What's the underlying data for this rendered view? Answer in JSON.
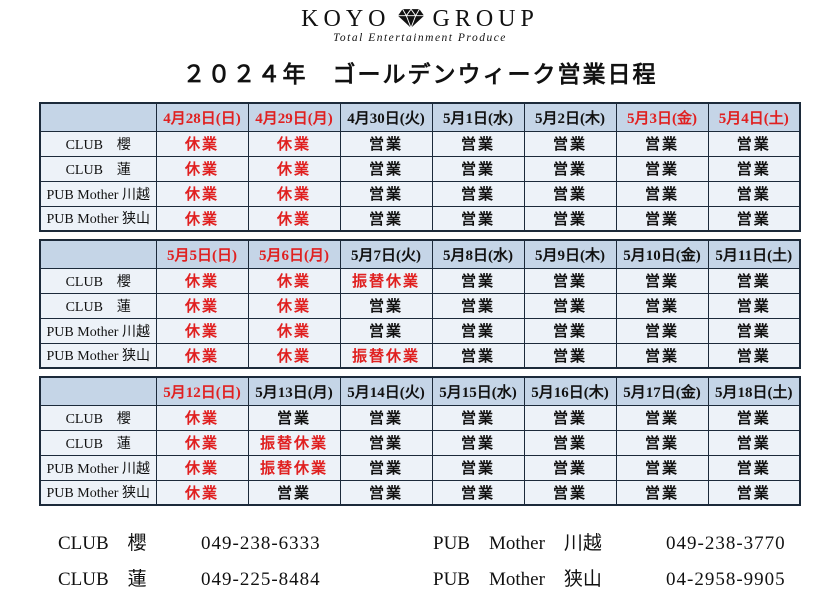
{
  "logo": {
    "brand_left": "KOYO",
    "brand_right": "GROUP",
    "tagline": "Total Entertainment Produce",
    "diamond_icon": "diamond-gem"
  },
  "title": "２０２４年　ゴールデンウィーク営業日程",
  "status_legend": {
    "open": "営業",
    "closed": "休業",
    "substitute_closed": "振替休業",
    "red_statuses": [
      "休業",
      "振替休業"
    ]
  },
  "colors": {
    "header_bg": "#c5d5e7",
    "cell_bg": "#edf2f8",
    "border": "#1c2a3a",
    "red_text": "#e02020",
    "black_text": "#111111"
  },
  "tables": [
    {
      "dates": [
        {
          "text": "4月28日(日)",
          "red": true
        },
        {
          "text": "4月29日(月)",
          "red": true
        },
        {
          "text": "4月30日(火)",
          "red": false
        },
        {
          "text": "5月1日(水)",
          "red": false
        },
        {
          "text": "5月2日(木)",
          "red": false
        },
        {
          "text": "5月3日(金)",
          "red": true
        },
        {
          "text": "5月4日(土)",
          "red": true
        }
      ],
      "rows": [
        {
          "label": "CLUB　櫻",
          "cells": [
            "休業",
            "休業",
            "営業",
            "営業",
            "営業",
            "営業",
            "営業"
          ]
        },
        {
          "label": "CLUB　蓮",
          "cells": [
            "休業",
            "休業",
            "営業",
            "営業",
            "営業",
            "営業",
            "営業"
          ]
        },
        {
          "label": "PUB Mother 川越",
          "cells": [
            "休業",
            "休業",
            "営業",
            "営業",
            "営業",
            "営業",
            "営業"
          ]
        },
        {
          "label": "PUB Mother 狭山",
          "cells": [
            "休業",
            "休業",
            "営業",
            "営業",
            "営業",
            "営業",
            "営業"
          ]
        }
      ]
    },
    {
      "dates": [
        {
          "text": "5月5日(日)",
          "red": true
        },
        {
          "text": "5月6日(月)",
          "red": true
        },
        {
          "text": "5月7日(火)",
          "red": false
        },
        {
          "text": "5月8日(水)",
          "red": false
        },
        {
          "text": "5月9日(木)",
          "red": false
        },
        {
          "text": "5月10日(金)",
          "red": false
        },
        {
          "text": "5月11日(土)",
          "red": false
        }
      ],
      "rows": [
        {
          "label": "CLUB　櫻",
          "cells": [
            "休業",
            "休業",
            "振替休業",
            "営業",
            "営業",
            "営業",
            "営業"
          ]
        },
        {
          "label": "CLUB　蓮",
          "cells": [
            "休業",
            "休業",
            "営業",
            "営業",
            "営業",
            "営業",
            "営業"
          ]
        },
        {
          "label": "PUB Mother 川越",
          "cells": [
            "休業",
            "休業",
            "営業",
            "営業",
            "営業",
            "営業",
            "営業"
          ]
        },
        {
          "label": "PUB Mother 狭山",
          "cells": [
            "休業",
            "休業",
            "振替休業",
            "営業",
            "営業",
            "営業",
            "営業"
          ]
        }
      ]
    },
    {
      "dates": [
        {
          "text": "5月12日(日)",
          "red": true
        },
        {
          "text": "5月13日(月)",
          "red": false
        },
        {
          "text": "5月14日(火)",
          "red": false
        },
        {
          "text": "5月15日(水)",
          "red": false
        },
        {
          "text": "5月16日(木)",
          "red": false
        },
        {
          "text": "5月17日(金)",
          "red": false
        },
        {
          "text": "5月18日(土)",
          "red": false
        }
      ],
      "rows": [
        {
          "label": "CLUB　櫻",
          "cells": [
            "休業",
            "営業",
            "営業",
            "営業",
            "営業",
            "営業",
            "営業"
          ]
        },
        {
          "label": "CLUB　蓮",
          "cells": [
            "休業",
            "振替休業",
            "営業",
            "営業",
            "営業",
            "営業",
            "営業"
          ]
        },
        {
          "label": "PUB Mother 川越",
          "cells": [
            "休業",
            "振替休業",
            "営業",
            "営業",
            "営業",
            "営業",
            "営業"
          ]
        },
        {
          "label": "PUB Mother 狭山",
          "cells": [
            "休業",
            "営業",
            "営業",
            "営業",
            "営業",
            "営業",
            "営業"
          ]
        }
      ]
    }
  ],
  "contacts": [
    {
      "name": "CLUB　櫻",
      "phone": "049-238-6333"
    },
    {
      "name": "CLUB　蓮",
      "phone": "049-225-8484"
    },
    {
      "name": "PUB　Mother　川越",
      "phone": "049-238-3770"
    },
    {
      "name": "PUB　Mother　狭山",
      "phone": "04-2958-9905"
    }
  ]
}
